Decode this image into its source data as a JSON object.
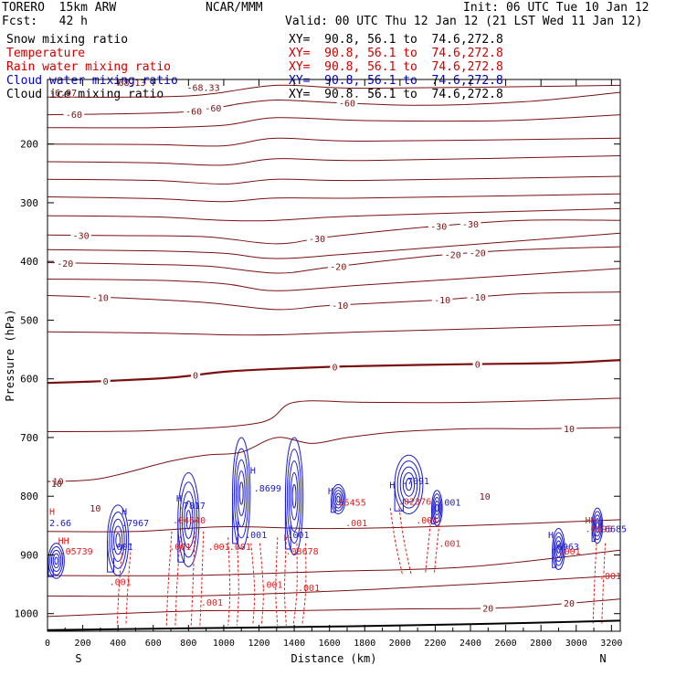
{
  "header": {
    "model": "TORERO  15km ARW",
    "center": "NCAR/MMM",
    "init": "Init: 06 UTC Tue 10 Jan 12",
    "fcst": "Fcst:   42 h",
    "valid": "Valid: 00 UTC Thu 12 Jan 12 (21 LST Wed 11 Jan 12)"
  },
  "fields": [
    {
      "name": "Snow mixing ratio",
      "color": "#000000",
      "xsec": "XY=  90.8, 56.1 to  74.6,272.8",
      "xsec_color": "#000000"
    },
    {
      "name": "Temperature",
      "color": "#cc0000",
      "xsec": "XY=  90.8, 56.1 to  74.6,272.8",
      "xsec_color": "#cc0000"
    },
    {
      "name": "Rain water mixing ratio",
      "color": "#cc0000",
      "xsec": "XY=  90.8, 56.1 to  74.6,272.8",
      "xsec_color": "#cc0000"
    },
    {
      "name": "Cloud water mixing ratio",
      "color": "#0000cc",
      "xsec": "XY=  90.8, 56.1 to  74.6,272.8",
      "xsec_color": "#0000cc"
    },
    {
      "name": "Cloud ice mixing ratio",
      "color": "#000000",
      "xsec": "XY=  90.8, 56.1 to  74.6,272.8",
      "xsec_color": "#000000"
    }
  ],
  "chart_data": {
    "type": "contour",
    "xlabel": "Distance (km)",
    "ylabel": "Pressure (hPa)",
    "xlim": [
      0,
      3250
    ],
    "ylim": [
      1030,
      90
    ],
    "x_ticks": [
      0,
      200,
      400,
      600,
      800,
      1000,
      1200,
      1400,
      1600,
      1800,
      2000,
      2200,
      2400,
      2600,
      2800,
      3000,
      3200
    ],
    "y_ticks": [
      200,
      300,
      400,
      500,
      600,
      700,
      800,
      900,
      1000
    ],
    "end_labels": {
      "left": "S",
      "right": "N"
    },
    "colors": {
      "temperature": "#7a1010",
      "rain": "#dd2222",
      "cloud": "#1a1acc",
      "ground": "#000000"
    },
    "temperature_isotherms": [
      {
        "label": "-60",
        "pts": [
          [
            0,
            150
          ],
          [
            300,
            149
          ],
          [
            800,
            145
          ],
          [
            1100,
            131
          ],
          [
            1300,
            125
          ],
          [
            1600,
            129
          ],
          [
            2100,
            134
          ],
          [
            2700,
            128
          ],
          [
            3250,
            112
          ]
        ],
        "labels": [
          [
            150,
            -60
          ],
          [
            830,
            -60
          ],
          [
            940,
            -60
          ],
          [
            1700,
            -60
          ]
        ]
      },
      {
        "label": "-30",
        "pts": [
          [
            0,
            355
          ],
          [
            400,
            356
          ],
          [
            900,
            358
          ],
          [
            1300,
            370
          ],
          [
            1600,
            358
          ],
          [
            2200,
            340
          ],
          [
            2700,
            330
          ],
          [
            3250,
            330
          ]
        ],
        "labels": [
          [
            190,
            -30
          ],
          [
            1530,
            -30
          ],
          [
            2220,
            -30
          ],
          [
            2400,
            -30
          ]
        ]
      },
      {
        "label": "-20",
        "pts": [
          [
            0,
            402
          ],
          [
            400,
            404
          ],
          [
            900,
            408
          ],
          [
            1300,
            420
          ],
          [
            1600,
            410
          ],
          [
            2200,
            390
          ],
          [
            2700,
            380
          ],
          [
            3250,
            375
          ]
        ],
        "labels": [
          [
            100,
            -20
          ],
          [
            1650,
            -20
          ],
          [
            2300,
            -20
          ],
          [
            2440,
            -20
          ]
        ]
      },
      {
        "label": "-10",
        "pts": [
          [
            0,
            458
          ],
          [
            400,
            462
          ],
          [
            900,
            470
          ],
          [
            1300,
            482
          ],
          [
            1600,
            475
          ],
          [
            2200,
            466
          ],
          [
            2700,
            455
          ],
          [
            3250,
            452
          ]
        ],
        "labels": [
          [
            300,
            -10
          ],
          [
            1660,
            -10
          ],
          [
            2240,
            -10
          ],
          [
            2440,
            -10
          ]
        ]
      },
      {
        "label": "0",
        "pts": [
          [
            0,
            607
          ],
          [
            300,
            604
          ],
          [
            700,
            598
          ],
          [
            1000,
            588
          ],
          [
            1300,
            583
          ],
          [
            1800,
            578
          ],
          [
            2400,
            575
          ],
          [
            2900,
            573
          ],
          [
            3250,
            568
          ]
        ],
        "labels": [
          [
            330,
            0
          ],
          [
            840,
            0
          ],
          [
            1630,
            0
          ],
          [
            2440,
            0
          ]
        ]
      },
      {
        "label": "10",
        "pts": [
          [
            0,
            775
          ],
          [
            300,
            770
          ],
          [
            700,
            740
          ],
          [
            900,
            730
          ],
          [
            1100,
            725
          ],
          [
            1300,
            700
          ],
          [
            1500,
            710
          ],
          [
            1700,
            700
          ],
          [
            2000,
            690
          ],
          [
            2400,
            685
          ],
          [
            2800,
            685
          ],
          [
            3250,
            683
          ]
        ],
        "labels": [
          [
            60,
            10
          ],
          [
            2960,
            10
          ]
        ]
      },
      {
        "label": "20",
        "pts": [
          [
            0,
            1005
          ],
          [
            400,
            1000
          ],
          [
            900,
            995
          ],
          [
            1400,
            995
          ],
          [
            2000,
            992
          ],
          [
            2600,
            990
          ],
          [
            3250,
            975
          ]
        ],
        "labels": [
          [
            2500,
            20
          ],
          [
            2960,
            20
          ]
        ]
      }
    ],
    "other_isotherms": [
      [
        [
          0,
          120
        ],
        [
          800,
          118
        ],
        [
          1300,
          100
        ],
        [
          1800,
          105
        ],
        [
          3250,
          100
        ]
      ],
      [
        [
          0,
          172
        ],
        [
          600,
          172
        ],
        [
          1000,
          168
        ],
        [
          1300,
          155
        ],
        [
          1800,
          160
        ],
        [
          2600,
          160
        ],
        [
          3250,
          150
        ]
      ],
      [
        [
          0,
          200
        ],
        [
          600,
          201
        ],
        [
          1000,
          203
        ],
        [
          1300,
          190
        ],
        [
          1800,
          195
        ],
        [
          3250,
          190
        ]
      ],
      [
        [
          0,
          230
        ],
        [
          600,
          232
        ],
        [
          1000,
          236
        ],
        [
          1300,
          225
        ],
        [
          1800,
          228
        ],
        [
          3250,
          220
        ]
      ],
      [
        [
          0,
          260
        ],
        [
          600,
          262
        ],
        [
          1000,
          268
        ],
        [
          1300,
          260
        ],
        [
          1800,
          262
        ],
        [
          3250,
          255
        ]
      ],
      [
        [
          0,
          290
        ],
        [
          600,
          293
        ],
        [
          1000,
          298
        ],
        [
          1300,
          292
        ],
        [
          1800,
          292
        ],
        [
          3250,
          285
        ]
      ],
      [
        [
          0,
          322
        ],
        [
          600,
          324
        ],
        [
          1000,
          330
        ],
        [
          1300,
          330
        ],
        [
          1800,
          322
        ],
        [
          3250,
          310
        ]
      ],
      [
        [
          0,
          380
        ],
        [
          600,
          382
        ],
        [
          1000,
          386
        ],
        [
          1300,
          395
        ],
        [
          1800,
          385
        ],
        [
          3250,
          352
        ]
      ],
      [
        [
          0,
          430
        ],
        [
          600,
          432
        ],
        [
          1000,
          438
        ],
        [
          1300,
          450
        ],
        [
          1800,
          440
        ],
        [
          3250,
          412
        ]
      ],
      [
        [
          0,
          520
        ],
        [
          600,
          522
        ],
        [
          1000,
          525
        ],
        [
          1300,
          525
        ],
        [
          1800,
          520
        ],
        [
          3250,
          508
        ]
      ],
      [
        [
          0,
          690
        ],
        [
          600,
          688
        ],
        [
          1200,
          675
        ],
        [
          1400,
          640
        ],
        [
          1800,
          640
        ],
        [
          2400,
          640
        ],
        [
          3250,
          633
        ]
      ],
      [
        [
          0,
          860
        ],
        [
          500,
          860
        ],
        [
          1000,
          852
        ],
        [
          1600,
          855
        ],
        [
          2400,
          850
        ],
        [
          3250,
          840
        ]
      ],
      [
        [
          0,
          935
        ],
        [
          800,
          935
        ],
        [
          1600,
          928
        ],
        [
          2400,
          920
        ],
        [
          3250,
          892
        ]
      ],
      [
        [
          0,
          970
        ],
        [
          800,
          970
        ],
        [
          1600,
          962
        ],
        [
          2400,
          950
        ],
        [
          3250,
          935
        ]
      ]
    ],
    "ground": [
      [
        0,
        1028
      ],
      [
        800,
        1025
      ],
      [
        1600,
        1022
      ],
      [
        2400,
        1018
      ],
      [
        3250,
        1012
      ]
    ],
    "cloud_cells": [
      {
        "x": 50,
        "top": 880,
        "bottom": 940,
        "w": 90
      },
      {
        "x": 400,
        "top": 815,
        "bottom": 935,
        "w": 120
      },
      {
        "x": 800,
        "top": 760,
        "bottom": 920,
        "w": 120
      },
      {
        "x": 1100,
        "top": 700,
        "bottom": 890,
        "w": 100
      },
      {
        "x": 1400,
        "top": 700,
        "bottom": 900,
        "w": 100
      },
      {
        "x": 1650,
        "top": 780,
        "bottom": 830,
        "w": 80
      },
      {
        "x": 2050,
        "top": 730,
        "bottom": 830,
        "w": 160
      },
      {
        "x": 2210,
        "top": 790,
        "bottom": 850,
        "w": 60
      },
      {
        "x": 2900,
        "top": 855,
        "bottom": 925,
        "w": 70
      },
      {
        "x": 3120,
        "top": 820,
        "bottom": 880,
        "w": 60
      }
    ],
    "rain_shafts": [
      [
        [
          450,
          880
        ],
        [
          430,
          960
        ],
        [
          420,
          1020
        ]
      ],
      [
        [
          730,
          860
        ],
        [
          710,
          950
        ],
        [
          700,
          1020
        ]
      ],
      [
        [
          860,
          860
        ],
        [
          850,
          950
        ],
        [
          840,
          1020
        ]
      ],
      [
        [
          1050,
          870
        ],
        [
          1060,
          960
        ],
        [
          1050,
          1020
        ]
      ],
      [
        [
          1180,
          880
        ],
        [
          1200,
          960
        ],
        [
          1190,
          1020
        ]
      ],
      [
        [
          1330,
          870
        ],
        [
          1320,
          960
        ],
        [
          1330,
          1020
        ]
      ],
      [
        [
          1440,
          880
        ],
        [
          1440,
          960
        ],
        [
          1420,
          1020
        ]
      ],
      [
        [
          1970,
          820
        ],
        [
          2000,
          880
        ],
        [
          2040,
          935
        ]
      ],
      [
        [
          2200,
          840
        ],
        [
          2180,
          900
        ],
        [
          2170,
          930
        ]
      ],
      [
        [
          3140,
          880
        ],
        [
          3130,
          940
        ],
        [
          3120,
          1020
        ]
      ]
    ],
    "annotations": [
      {
        "text": "2.66",
        "x": 0,
        "p": 845,
        "c": "cloud"
      },
      {
        "text": "H",
        "x": 0,
        "p": 825,
        "c": "rain"
      },
      {
        "text": "HH",
        "x": 50,
        "p": 875,
        "c": "rain"
      },
      {
        "text": ".05739",
        "x": 60,
        "p": 893,
        "c": "rain"
      },
      {
        "text": "10",
        "x": 10,
        "p": 778,
        "c": "temperature"
      },
      {
        "text": "10",
        "x": 230,
        "p": 820,
        "c": "temperature"
      },
      {
        "text": "H",
        "x": 410,
        "p": 825,
        "c": "cloud"
      },
      {
        "text": ".7967",
        "x": 410,
        "p": 845,
        "c": "cloud"
      },
      {
        "text": ".001",
        "x": 350,
        "p": 885,
        "c": "cloud"
      },
      {
        "text": ".001",
        "x": 340,
        "p": 945,
        "c": "rain"
      },
      {
        "text": "H",
        "x": 720,
        "p": 803,
        "c": "cloud"
      },
      {
        "text": ".7817",
        "x": 730,
        "p": 815,
        "c": "cloud"
      },
      {
        "text": ".04640",
        "x": 700,
        "p": 840,
        "c": "rain"
      },
      {
        "text": ".001",
        "x": 680,
        "p": 885,
        "c": "rain"
      },
      {
        "text": ".001",
        "x": 900,
        "p": 885,
        "c": "rain"
      },
      {
        "text": ".001",
        "x": 1020,
        "p": 885,
        "c": "rain"
      },
      {
        "text": ".001",
        "x": 1110,
        "p": 865,
        "c": "cloud"
      },
      {
        "text": ".001",
        "x": 860,
        "p": 980,
        "c": "rain"
      },
      {
        "text": "H",
        "x": 1140,
        "p": 755,
        "c": "cloud"
      },
      {
        "text": ".8699",
        "x": 1160,
        "p": 786,
        "c": "cloud"
      },
      {
        "text": "H",
        "x": 1330,
        "p": 870,
        "c": "rain"
      },
      {
        "text": ".08678",
        "x": 1340,
        "p": 893,
        "c": "rain"
      },
      {
        "text": ".001",
        "x": 1350,
        "p": 865,
        "c": "cloud"
      },
      {
        "text": ".001",
        "x": 1410,
        "p": 955,
        "c": "rain"
      },
      {
        "text": ".001",
        "x": 1200,
        "p": 950,
        "c": "rain"
      },
      {
        "text": "H",
        "x": 1580,
        "p": 790,
        "c": "cloud"
      },
      {
        "text": ".05455",
        "x": 1610,
        "p": 810,
        "c": "rain"
      },
      {
        "text": ".001",
        "x": 1680,
        "p": 845,
        "c": "rain"
      },
      {
        "text": "H",
        "x": 1930,
        "p": 780,
        "c": "cloud"
      },
      {
        "text": ".7091",
        "x": 2000,
        "p": 773,
        "c": "cloud"
      },
      {
        "text": ".02376",
        "x": 1980,
        "p": 808,
        "c": "rain"
      },
      {
        "text": ".001",
        "x": 2080,
        "p": 840,
        "c": "rain"
      },
      {
        "text": ".001",
        "x": 2210,
        "p": 810,
        "c": "cloud"
      },
      {
        "text": ".001",
        "x": 2210,
        "p": 880,
        "c": "rain"
      },
      {
        "text": "10",
        "x": 2440,
        "p": 800,
        "c": "temperature"
      },
      {
        "text": "H",
        "x": 2830,
        "p": 865,
        "c": "cloud"
      },
      {
        "text": ".6963",
        "x": 2850,
        "p": 885,
        "c": "cloud"
      },
      {
        "text": ".001",
        "x": 2890,
        "p": 893,
        "c": "rain"
      },
      {
        "text": "HH",
        "x": 3040,
        "p": 840,
        "c": "rain"
      },
      {
        "text": ".0695",
        "x": 3040,
        "p": 855,
        "c": "rain"
      },
      {
        "text": ".6685",
        "x": 3120,
        "p": 855,
        "c": "cloud"
      },
      {
        "text": ".001",
        "x": 3120,
        "p": 935,
        "c": "rain"
      },
      {
        "text": "-68.33",
        "x": 780,
        "p": 103,
        "c": "temperature"
      },
      {
        "text": "-68.13",
        "x": 360,
        "p": 95,
        "c": "temperature"
      },
      {
        "text": "-6.97",
        "x": 0,
        "p": 112,
        "c": "temperature"
      }
    ]
  }
}
